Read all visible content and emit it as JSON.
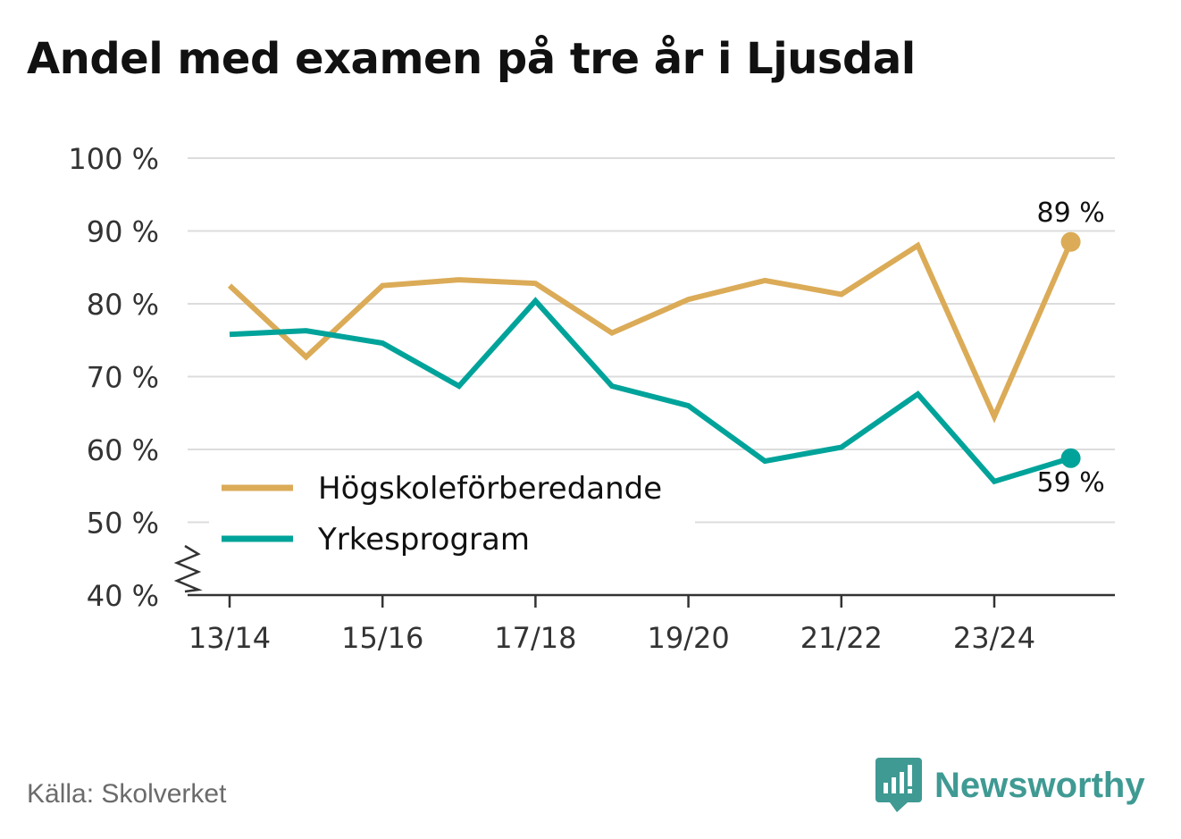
{
  "title": "Andel med examen på tre år i Ljusdal",
  "source": "Källa: Skolverket",
  "brand": {
    "name": "Newsworthy",
    "icon": "newsworthy-logo-icon",
    "color": "#3f9a93"
  },
  "chart_data": {
    "type": "line",
    "title": "Andel med examen på tre år i Ljusdal",
    "xlabel": "",
    "ylabel": "",
    "ylim": [
      40,
      100
    ],
    "y_ticks": [
      "40 %",
      "50 %",
      "60 %",
      "70 %",
      "80 %",
      "90 %",
      "100 %"
    ],
    "y_tick_values": [
      40,
      50,
      60,
      70,
      80,
      90,
      100
    ],
    "y_axis_break": true,
    "grid": true,
    "categories": [
      "13/14",
      "14/15",
      "15/16",
      "16/17",
      "17/18",
      "18/19",
      "19/20",
      "20/21",
      "21/22",
      "22/23",
      "23/24",
      "24/25"
    ],
    "x_tick_labels": [
      "13/14",
      "15/16",
      "17/18",
      "19/20",
      "21/22",
      "23/24"
    ],
    "legend_position": "bottom-left",
    "series": [
      {
        "name": "Högskoleförberedande",
        "color": "#dbab57",
        "values": [
          82.5,
          72.7,
          82.5,
          83.3,
          82.8,
          76.0,
          80.6,
          83.2,
          81.3,
          88.0,
          64.5,
          88.5
        ],
        "end_label": "89 %"
      },
      {
        "name": "Yrkesprogram",
        "color": "#00a39a",
        "values": [
          75.8,
          76.3,
          74.6,
          68.7,
          80.4,
          68.7,
          66.0,
          58.4,
          60.3,
          67.6,
          55.6,
          58.8
        ],
        "end_label": "59 %"
      }
    ]
  }
}
